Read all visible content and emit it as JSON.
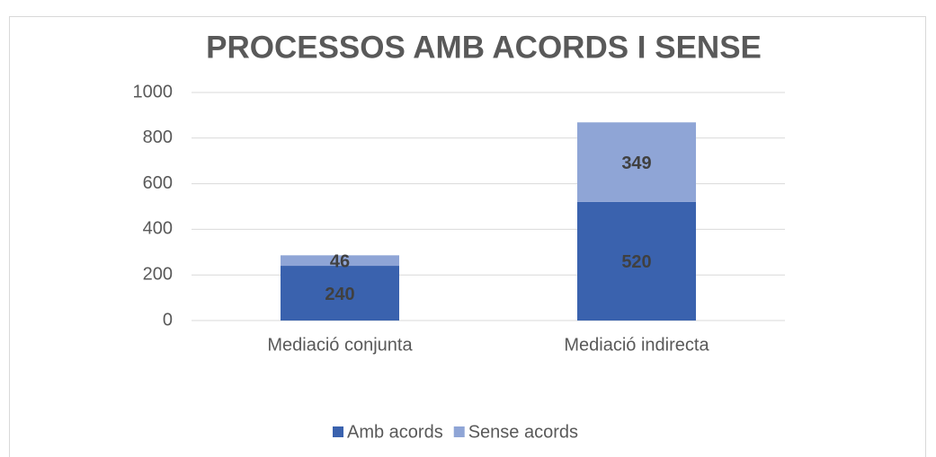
{
  "chart_data": {
    "type": "stacked_bar",
    "title": "PROCESSOS AMB ACORDS I SENSE",
    "categories": [
      "Mediació conjunta",
      "Mediació indirecta"
    ],
    "series": [
      {
        "name": "Amb acords",
        "color": "#3a62ae",
        "values": [
          240,
          520
        ]
      },
      {
        "name": "Sense acords",
        "color": "#8fa5d6",
        "values": [
          46,
          349
        ]
      }
    ],
    "ylim": [
      0,
      1000
    ],
    "yticks": [
      0,
      200,
      400,
      600,
      800,
      1000
    ],
    "grid": true,
    "legend": "bottom"
  }
}
